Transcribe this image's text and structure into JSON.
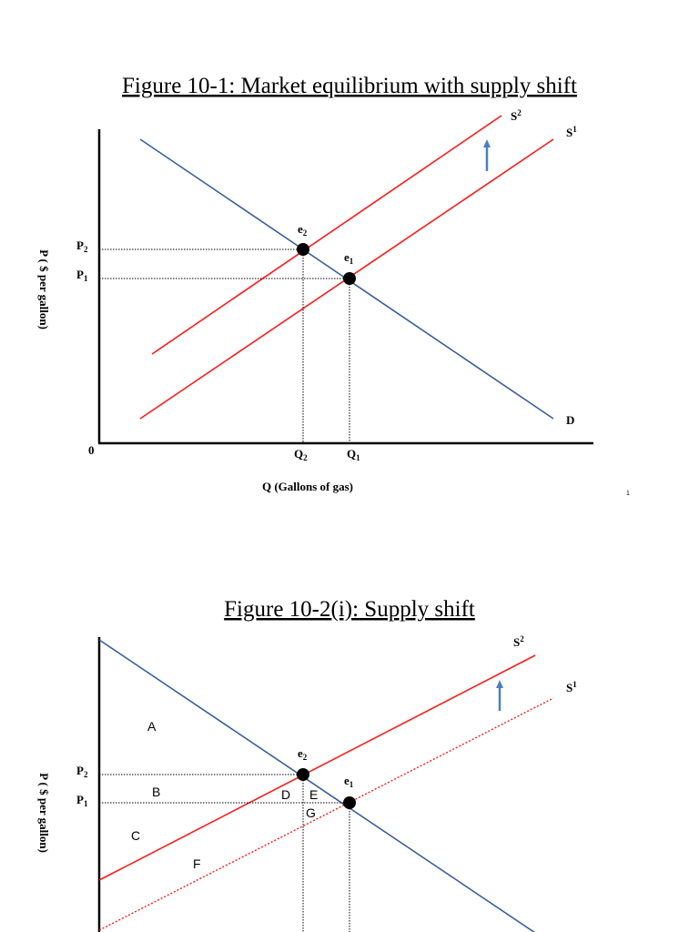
{
  "figure1": {
    "title": "Figure 10-1: Market equilibrium with supply shift",
    "ylabel": "P ( $ per gallon)",
    "xlabel": "Q (Gallons of gas)",
    "origin": "0",
    "price_labels": {
      "p2": "P",
      "p2_sub": "2",
      "p1": "P",
      "p1_sub": "1"
    },
    "quantity_labels": {
      "q2": "Q",
      "q2_sub": "2",
      "q1": "Q",
      "q1_sub": "1"
    },
    "point_labels": {
      "e2": "e",
      "e2_sub": "2",
      "e1": "e",
      "e1_sub": "1"
    },
    "curve_labels": {
      "s2": "S",
      "s2_sup": "2",
      "s1": "S",
      "s1_sup": "1",
      "d": "D"
    },
    "page_number": "1"
  },
  "figure2": {
    "title": "Figure 10-2(i): Supply shift",
    "ylabel": "P ( $ per gallon)",
    "price_labels": {
      "p2": "P",
      "p2_sub": "2",
      "p1": "P",
      "p1_sub": "1"
    },
    "point_labels": {
      "e2": "e",
      "e2_sub": "2",
      "e1": "e",
      "e1_sub": "1"
    },
    "curve_labels": {
      "s2": "S",
      "s2_sup": "2",
      "s1": "S",
      "s1_sup": "1"
    },
    "areas": [
      "A",
      "B",
      "C",
      "D",
      "E",
      "F",
      "G"
    ]
  },
  "colors": {
    "demand": "#3a5f9a",
    "supply": "#ff1a1a",
    "arrow": "#4a7fc4",
    "axis": "#000000",
    "point": "#000000"
  }
}
